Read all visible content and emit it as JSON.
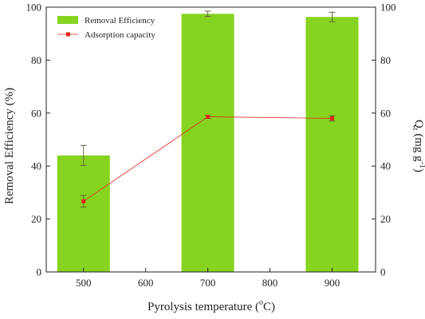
{
  "chart_data": {
    "type": "bar",
    "xlabel": "Pyrolysis temperature (°C)",
    "xlabel_main": "Pyrolysis temperature (",
    "xlabel_degree": "o",
    "xlabel_unit": "C)",
    "ylabel_left": "Removal Efficiency (%)",
    "ylabel_right": "Qt (mg g-1)",
    "ylabel_right_main": "Q",
    "ylabel_right_sub": "t",
    "ylabel_right_unit": " (mg g",
    "ylabel_right_sup": "-1",
    "ylabel_right_close": ")",
    "xlim": [
      440,
      970
    ],
    "x_ticks": [
      500,
      600,
      700,
      800,
      900
    ],
    "ylim_left": [
      0,
      100
    ],
    "ylim_right": [
      0,
      100
    ],
    "y_ticks": [
      0,
      20,
      40,
      60,
      80,
      100
    ],
    "legend_position": "top-left",
    "grid": false,
    "series": [
      {
        "name": "Removal Efficiency",
        "kind": "bar",
        "axis": "left",
        "color": "#86d320",
        "x": [
          500,
          700,
          900
        ],
        "values": [
          44.0,
          97.5,
          96.3
        ],
        "errors": [
          3.8,
          1.0,
          1.8
        ]
      },
      {
        "name": "Adsorption capacity",
        "kind": "line",
        "axis": "right",
        "color": "#e8261c",
        "x": [
          500,
          700,
          900
        ],
        "values": [
          26.7,
          58.6,
          58.0
        ],
        "errors": [
          2.2,
          0.6,
          1.0
        ]
      }
    ]
  }
}
